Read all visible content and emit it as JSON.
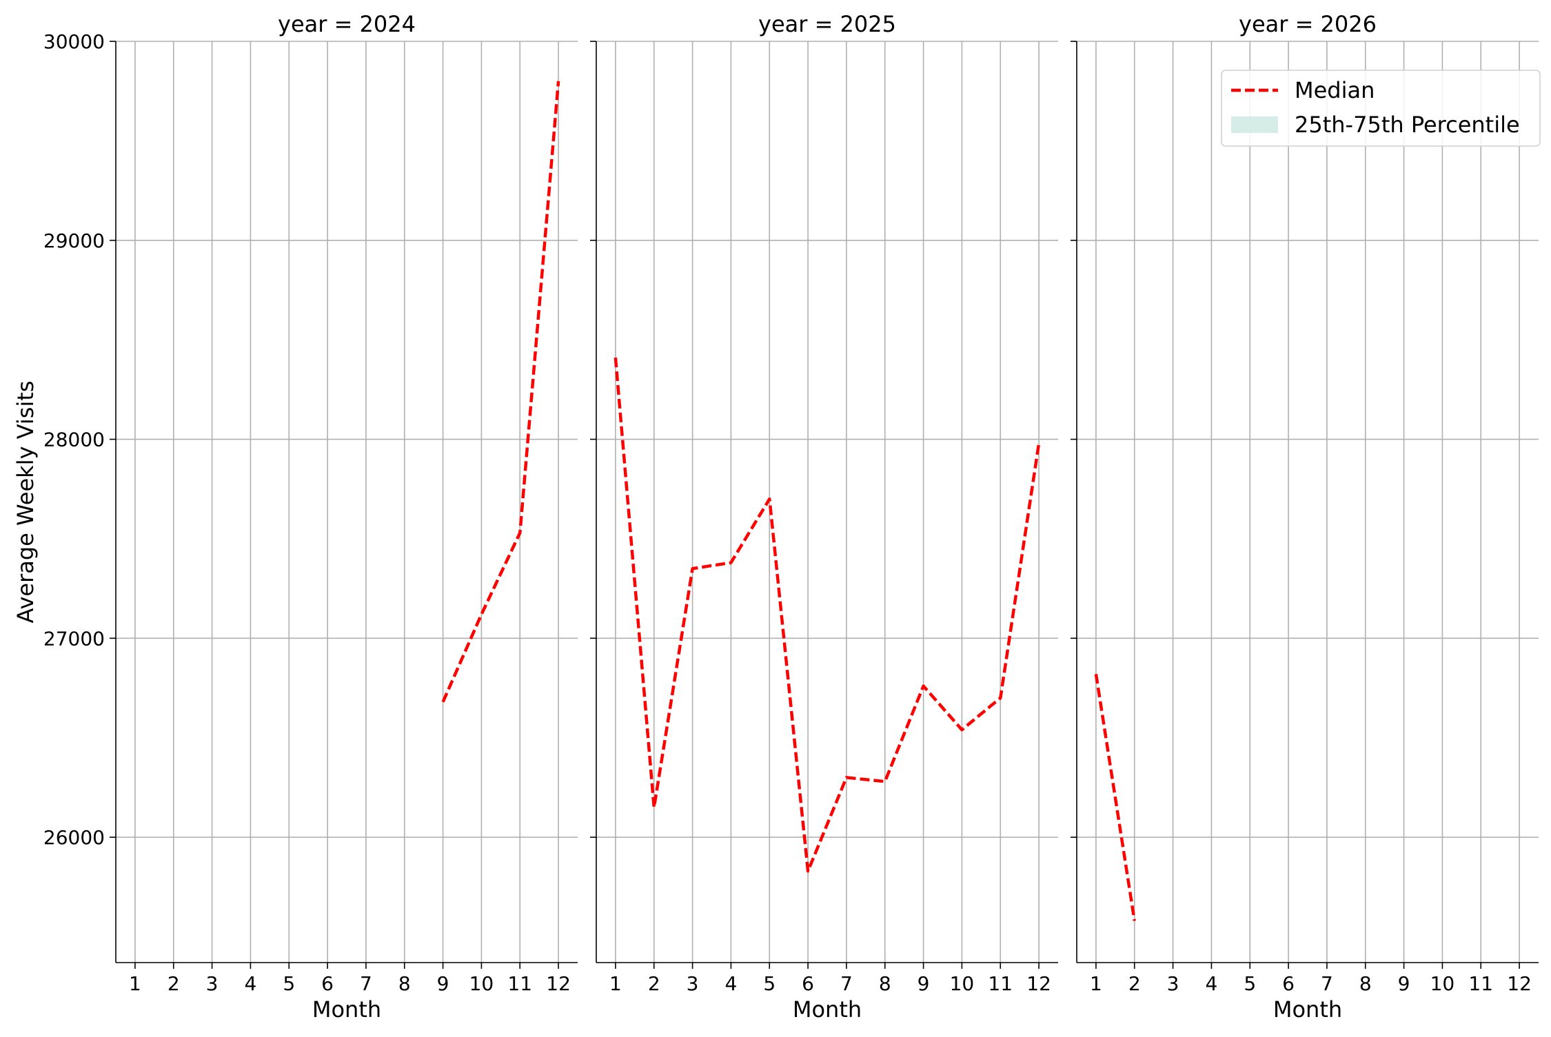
{
  "chart_data": {
    "type": "line",
    "facet_by": "year",
    "ylabel": "Average Weekly Visits",
    "xlabel": "Month",
    "x_ticks": [
      1,
      2,
      3,
      4,
      5,
      6,
      7,
      8,
      9,
      10,
      11,
      12
    ],
    "y_ticks": [
      26000,
      27000,
      28000,
      29000,
      30000
    ],
    "ylim": [
      25370,
      30000
    ],
    "xlim": [
      0.5,
      12.5
    ],
    "grid": true,
    "shared_y": true,
    "legend": {
      "placement": "top-right",
      "entries": [
        {
          "label": "Median",
          "kind": "dashed-line",
          "color": "#ff0000"
        },
        {
          "label": "25th-75th Percentile",
          "kind": "patch",
          "color": "#d6ece6"
        }
      ]
    },
    "panels": [
      {
        "title": "year = 2024",
        "series": [
          {
            "name": "Median",
            "color": "#ff0000",
            "points": [
              [
                9,
                26680
              ],
              [
                10,
                27120
              ],
              [
                11,
                27530
              ],
              [
                12,
                29800
              ]
            ]
          }
        ]
      },
      {
        "title": "year = 2025",
        "series": [
          {
            "name": "Median",
            "color": "#ff0000",
            "points": [
              [
                1,
                28410
              ],
              [
                2,
                26150
              ],
              [
                3,
                27350
              ],
              [
                4,
                27380
              ],
              [
                5,
                27700
              ],
              [
                6,
                25830
              ],
              [
                7,
                26300
              ],
              [
                8,
                26280
              ],
              [
                9,
                26760
              ],
              [
                10,
                26540
              ],
              [
                11,
                26700
              ],
              [
                12,
                27980
              ]
            ]
          }
        ]
      },
      {
        "title": "year = 2026",
        "series": [
          {
            "name": "Median",
            "color": "#ff0000",
            "points": [
              [
                1,
                26820
              ],
              [
                2,
                25580
              ]
            ]
          }
        ]
      }
    ]
  }
}
